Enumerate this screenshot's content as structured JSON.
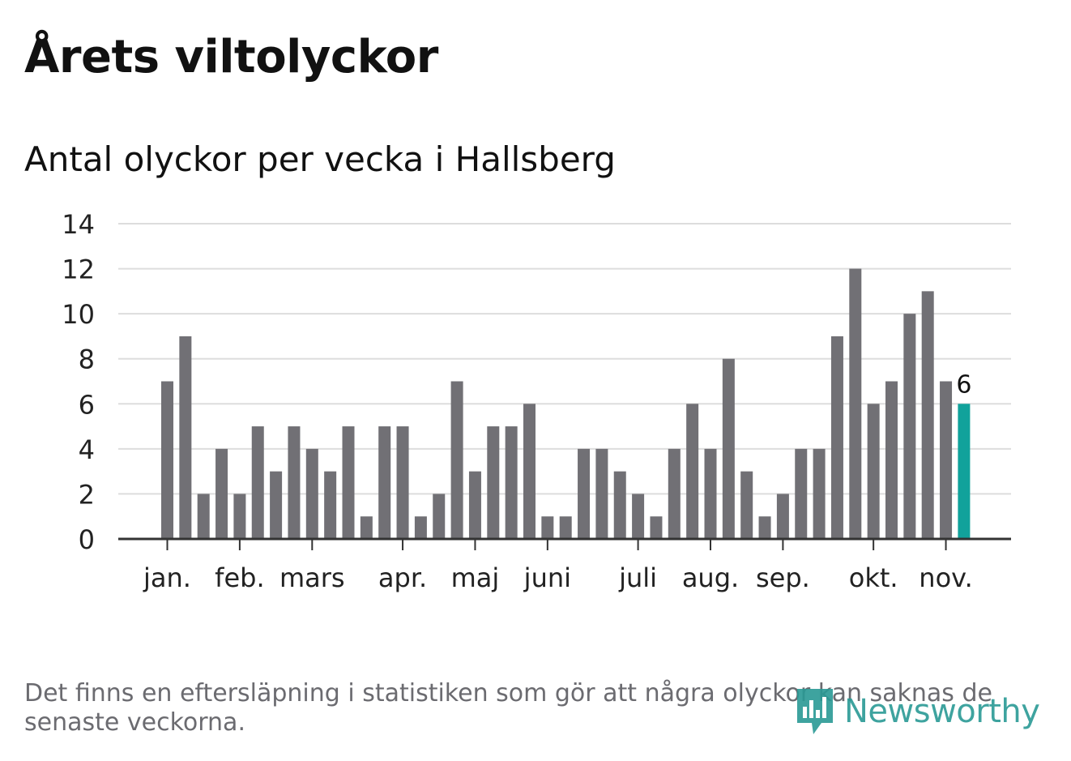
{
  "title": "Årets viltolyckor",
  "subtitle": "Antal olyckor per vecka i Hallsberg",
  "footnote": "Det finns en eftersläpning i statistiken som gör att några olyckor kan saknas de senaste veckorna.",
  "logo": {
    "text": "Newsworthy",
    "icon": "chart-bars-icon"
  },
  "colors": {
    "bar": "#717075",
    "highlight": "#11a29b",
    "grid": "#dddddd",
    "axis": "#333333",
    "text": "#111111",
    "logo": "#2a9a95"
  },
  "chart_data": {
    "type": "bar",
    "title": "Antal olyckor per vecka i Hallsberg",
    "xlabel": "",
    "ylabel": "",
    "ylim": [
      0,
      14
    ],
    "yticks": [
      "0",
      "2",
      "4",
      "6",
      "8",
      "10",
      "12",
      "14"
    ],
    "grid": true,
    "values": [
      7,
      9,
      2,
      4,
      2,
      5,
      3,
      5,
      4,
      3,
      5,
      1,
      5,
      5,
      1,
      2,
      7,
      3,
      5,
      5,
      6,
      1,
      1,
      4,
      4,
      3,
      2,
      1,
      4,
      6,
      4,
      8,
      3,
      1,
      2,
      4,
      4,
      9,
      12,
      6,
      7,
      10,
      11,
      7,
      6
    ],
    "highlight_index": 44,
    "highlight_label": "6",
    "month_labels": [
      {
        "label": "jan.",
        "week": 0
      },
      {
        "label": "feb.",
        "week": 4
      },
      {
        "label": "mars",
        "week": 8
      },
      {
        "label": "apr.",
        "week": 13
      },
      {
        "label": "maj",
        "week": 17
      },
      {
        "label": "juni",
        "week": 21
      },
      {
        "label": "juli",
        "week": 26
      },
      {
        "label": "aug.",
        "week": 30
      },
      {
        "label": "sep.",
        "week": 34
      },
      {
        "label": "okt.",
        "week": 39
      },
      {
        "label": "nov.",
        "week": 43
      }
    ]
  }
}
